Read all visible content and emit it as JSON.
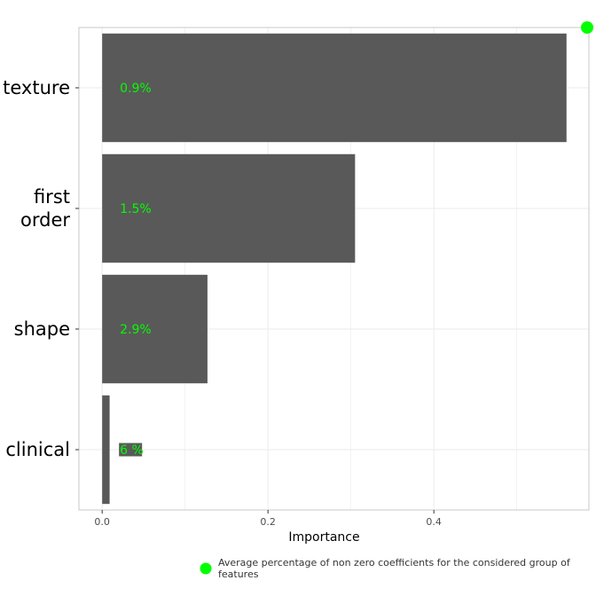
{
  "chart_data": {
    "type": "bar",
    "orientation": "horizontal",
    "categories": [
      [
        "texture"
      ],
      [
        "first",
        "order"
      ],
      [
        "shape"
      ],
      [
        "clinical"
      ]
    ],
    "values": [
      0.56,
      0.305,
      0.127,
      0.009
    ],
    "bar_labels": [
      "0.9%",
      "1.5%",
      "2.9%",
      "6 %"
    ],
    "xlabel": "Importance",
    "ylabel": "",
    "xlim": [
      -0.028,
      0.587
    ],
    "xticks": [
      0.0,
      0.2,
      0.4
    ],
    "xtick_labels": [
      "0.0",
      "0.2",
      "0.4"
    ],
    "grid": true,
    "legend": {
      "placement": "bottom",
      "entries": [
        {
          "label": "Average percentage of non zero coefficients for the considered group of features",
          "marker": "circle"
        }
      ]
    },
    "colors": {
      "bar": "#595959",
      "label": "#00ff00",
      "marker": "#00ff00",
      "grid": "#ebebeb",
      "panel_border": "#333333",
      "axis_text": "#4d4d4d"
    }
  }
}
